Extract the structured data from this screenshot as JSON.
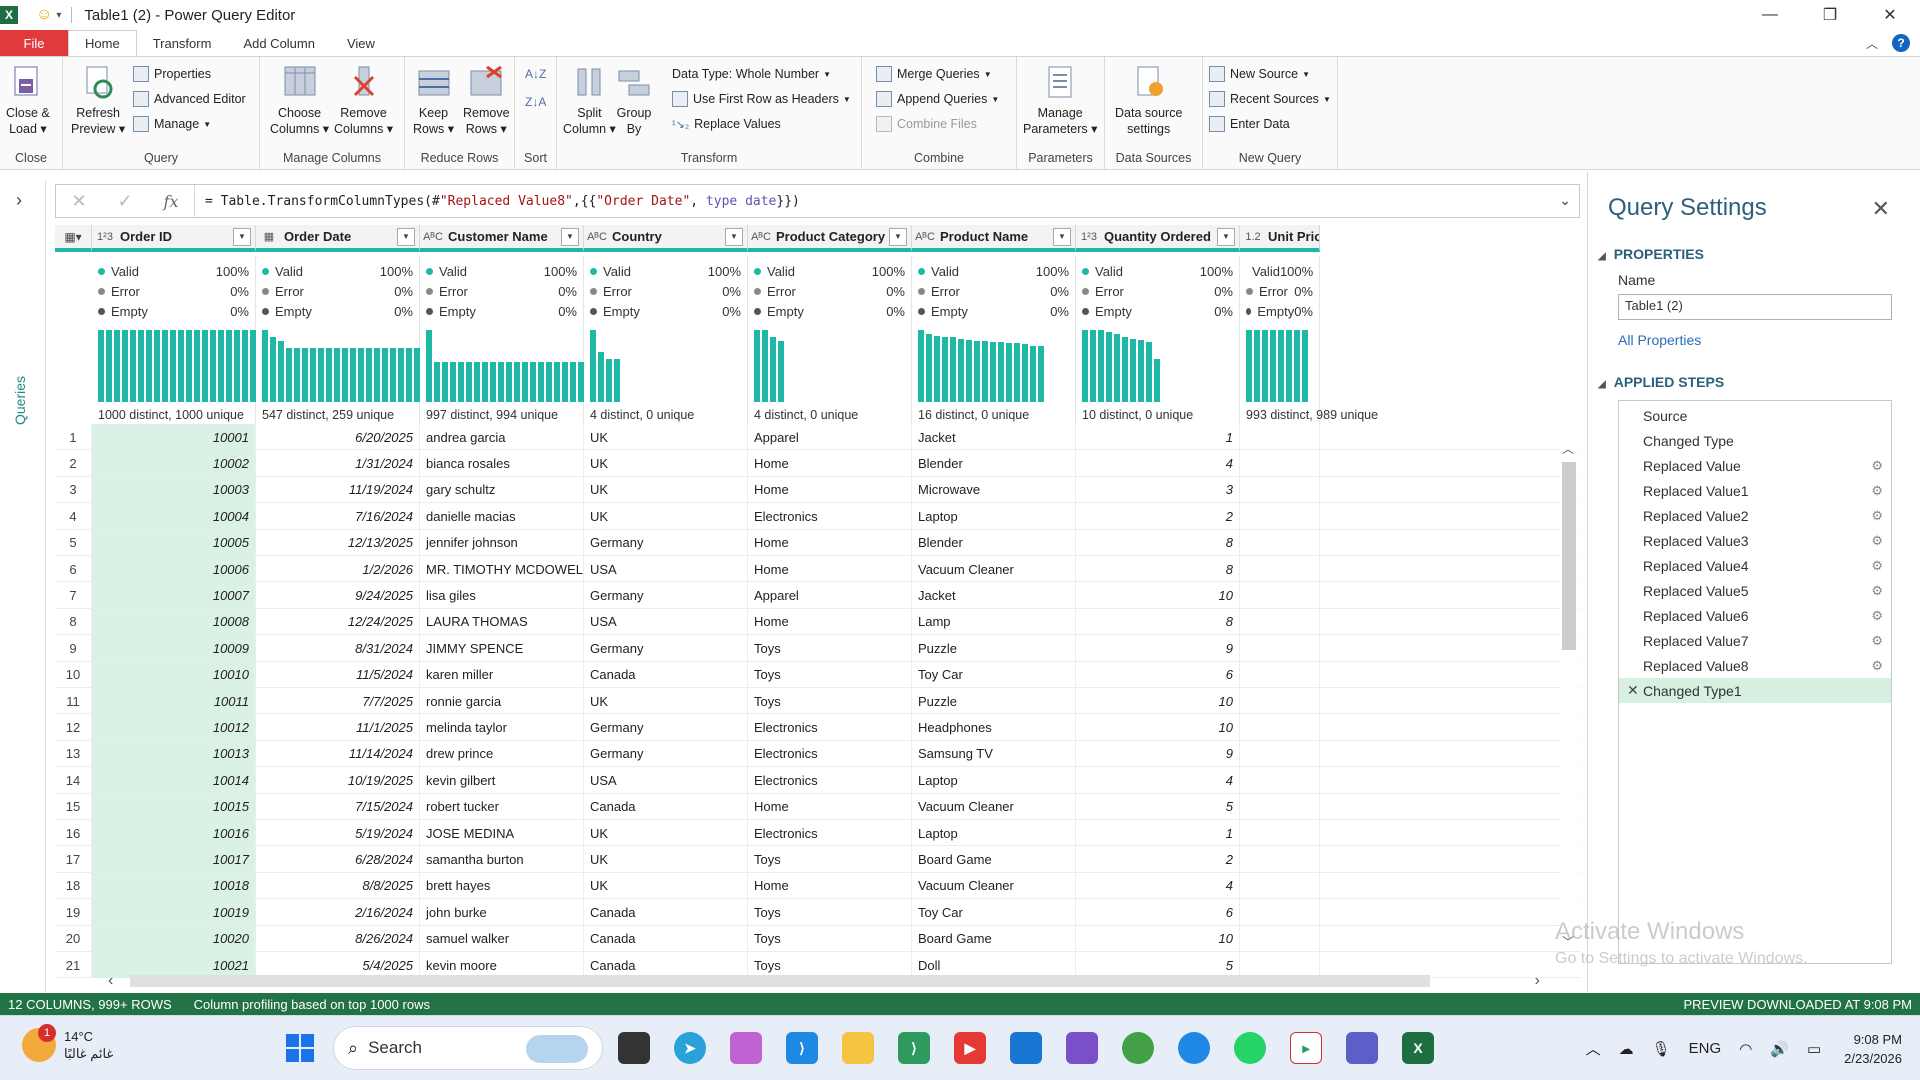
{
  "window": {
    "title": "Table1 (2) - Power Query Editor",
    "app_icon": "X",
    "controls": [
      "—",
      "❐",
      "✕"
    ]
  },
  "tabs": [
    {
      "label": "File"
    },
    {
      "label": "Home"
    },
    {
      "label": "Transform"
    },
    {
      "label": "Add Column"
    },
    {
      "label": "View"
    }
  ],
  "ribbon": {
    "close": {
      "btn": "Close &\nLoad ▾",
      "label": "Close"
    },
    "query": {
      "refresh": "Refresh\nPreview ▾",
      "properties": "Properties",
      "advanced": "Advanced Editor",
      "manage": "Manage",
      "label": "Query"
    },
    "manage_columns": {
      "choose": "Choose\nColumns ▾",
      "remove": "Remove\nColumns ▾",
      "label": "Manage Columns"
    },
    "reduce_rows": {
      "keep": "Keep\nRows ▾",
      "remove": "Remove\nRows ▾",
      "label": "Reduce Rows"
    },
    "sort": {
      "label": "Sort"
    },
    "transform": {
      "split": "Split\nColumn ▾",
      "group": "Group\nBy",
      "data_type": "Data Type: Whole Number",
      "first_row": "Use First Row as Headers",
      "replace": "Replace Values",
      "label": "Transform"
    },
    "combine": {
      "merge": "Merge Queries",
      "append": "Append Queries",
      "combine_files": "Combine Files",
      "label": "Combine"
    },
    "parameters": {
      "manage": "Manage\nParameters ▾",
      "label": "Parameters"
    },
    "data_sources": {
      "settings": "Data source\nsettings",
      "label": "Data Sources"
    },
    "new_query": {
      "new_source": "New Source",
      "recent": "Recent Sources",
      "enter": "Enter Data",
      "label": "New Query"
    }
  },
  "queries_pane": {
    "label": "Queries"
  },
  "formula": {
    "prefix": "= Table.TransformColumnTypes(#",
    "s1": "\"Replaced Value8\"",
    "mid1": ",{{",
    "s2": "\"Order Date\"",
    "mid2": ", ",
    "kw1": "type",
    "mid3": " ",
    "kw2": "date",
    "suffix": "}})"
  },
  "columns": [
    {
      "type": "1²3",
      "name": "Order ID",
      "valid": "100%",
      "error": "0%",
      "empty": "0%",
      "distinct": "1000 distinct, 1000 unique",
      "hist": [
        1,
        1,
        1,
        1,
        1,
        1,
        1,
        1,
        1,
        1,
        1,
        1,
        1,
        1,
        1,
        1,
        1,
        1,
        1,
        1
      ]
    },
    {
      "type": "▦",
      "name": "Order Date",
      "valid": "100%",
      "error": "0%",
      "empty": "0%",
      "distinct": "547 distinct, 259 unique",
      "hist": [
        1,
        0.9,
        0.85,
        0.75,
        0.75,
        0.75,
        0.75,
        0.75,
        0.75,
        0.75,
        0.75,
        0.75,
        0.75,
        0.75,
        0.75,
        0.75,
        0.75,
        0.75,
        0.75,
        0.75
      ]
    },
    {
      "type": "AᴮC",
      "name": "Customer Name",
      "valid": "100%",
      "error": "0%",
      "empty": "0%",
      "distinct": "997 distinct, 994 unique",
      "hist": [
        1,
        0.55,
        0.55,
        0.55,
        0.55,
        0.55,
        0.55,
        0.55,
        0.55,
        0.55,
        0.55,
        0.55,
        0.55,
        0.55,
        0.55,
        0.55,
        0.55,
        0.55,
        0.55,
        0.55
      ]
    },
    {
      "type": "AᴮC",
      "name": "Country",
      "valid": "100%",
      "error": "0%",
      "empty": "0%",
      "distinct": "4 distinct, 0 unique",
      "hist": [
        1,
        0.7,
        0.6,
        0.6
      ]
    },
    {
      "type": "AᴮC",
      "name": "Product Category",
      "valid": "100%",
      "error": "0%",
      "empty": "0%",
      "distinct": "4 distinct, 0 unique",
      "hist": [
        1,
        1,
        0.9,
        0.85
      ]
    },
    {
      "type": "AᴮC",
      "name": "Product Name",
      "valid": "100%",
      "error": "0%",
      "empty": "0%",
      "distinct": "16 distinct, 0 unique",
      "hist": [
        1,
        0.95,
        0.92,
        0.9,
        0.9,
        0.88,
        0.86,
        0.85,
        0.85,
        0.84,
        0.83,
        0.82,
        0.82,
        0.8,
        0.78,
        0.78
      ]
    },
    {
      "type": "1²3",
      "name": "Quantity Ordered",
      "valid": "100%",
      "error": "0%",
      "empty": "0%",
      "distinct": "10 distinct, 0 unique",
      "hist": [
        1,
        1,
        1,
        0.97,
        0.95,
        0.9,
        0.88,
        0.86,
        0.84,
        0.6
      ]
    },
    {
      "type": "1.2",
      "name": "Unit Price",
      "valid": "100%",
      "error": "0%",
      "empty": "0%",
      "distinct": "993 distinct, 989 unique",
      "hist": [
        1,
        1,
        1,
        1,
        1,
        1,
        1,
        1
      ]
    }
  ],
  "profile_labels": {
    "valid": "Valid",
    "error": "Error",
    "empty": "Empty"
  },
  "rows": [
    [
      "1",
      "10001",
      "6/20/2025",
      "andrea garcia",
      "UK",
      "Apparel",
      "Jacket",
      "1"
    ],
    [
      "2",
      "10002",
      "1/31/2024",
      "bianca rosales",
      "UK",
      "Home",
      "Blender",
      "4"
    ],
    [
      "3",
      "10003",
      "11/19/2024",
      "gary schultz",
      "UK",
      "Home",
      "Microwave",
      "3"
    ],
    [
      "4",
      "10004",
      "7/16/2024",
      "danielle macias",
      "UK",
      "Electronics",
      "Laptop",
      "2"
    ],
    [
      "5",
      "10005",
      "12/13/2025",
      "jennifer johnson",
      "Germany",
      "Home",
      "Blender",
      "8"
    ],
    [
      "6",
      "10006",
      "1/2/2026",
      "MR. TIMOTHY MCDOWELL",
      "USA",
      "Home",
      "Vacuum Cleaner",
      "8"
    ],
    [
      "7",
      "10007",
      "9/24/2025",
      "lisa giles",
      "Germany",
      "Apparel",
      "Jacket",
      "10"
    ],
    [
      "8",
      "10008",
      "12/24/2025",
      "LAURA THOMAS",
      "USA",
      "Home",
      "Lamp",
      "8"
    ],
    [
      "9",
      "10009",
      "8/31/2024",
      "JIMMY SPENCE",
      "Germany",
      "Toys",
      "Puzzle",
      "9"
    ],
    [
      "10",
      "10010",
      "11/5/2024",
      "karen miller",
      "Canada",
      "Toys",
      "Toy Car",
      "6"
    ],
    [
      "11",
      "10011",
      "7/7/2025",
      "ronnie garcia",
      "UK",
      "Toys",
      "Puzzle",
      "10"
    ],
    [
      "12",
      "10012",
      "11/1/2025",
      "melinda taylor",
      "Germany",
      "Electronics",
      "Headphones",
      "10"
    ],
    [
      "13",
      "10013",
      "11/14/2024",
      "drew prince",
      "Germany",
      "Electronics",
      "Samsung TV",
      "9"
    ],
    [
      "14",
      "10014",
      "10/19/2025",
      "kevin gilbert",
      "USA",
      "Electronics",
      "Laptop",
      "4"
    ],
    [
      "15",
      "10015",
      "7/15/2024",
      "robert tucker",
      "Canada",
      "Home",
      "Vacuum Cleaner",
      "5"
    ],
    [
      "16",
      "10016",
      "5/19/2024",
      "JOSE MEDINA",
      "UK",
      "Electronics",
      "Laptop",
      "1"
    ],
    [
      "17",
      "10017",
      "6/28/2024",
      "samantha burton",
      "UK",
      "Toys",
      "Board Game",
      "2"
    ],
    [
      "18",
      "10018",
      "8/8/2025",
      "brett hayes",
      "UK",
      "Home",
      "Vacuum Cleaner",
      "4"
    ],
    [
      "19",
      "10019",
      "2/16/2024",
      "john burke",
      "Canada",
      "Toys",
      "Toy Car",
      "6"
    ],
    [
      "20",
      "10020",
      "8/26/2024",
      "samuel walker",
      "Canada",
      "Toys",
      "Board Game",
      "10"
    ],
    [
      "21",
      "10021",
      "5/4/2025",
      "kevin moore",
      "Canada",
      "Toys",
      "Doll",
      "5"
    ]
  ],
  "query_settings": {
    "title": "Query Settings",
    "properties": "PROPERTIES",
    "name_label": "Name",
    "name_value": "Table1 (2)",
    "all_properties": "All Properties",
    "applied_steps": "APPLIED STEPS",
    "steps": [
      {
        "label": "Source",
        "gear": false
      },
      {
        "label": "Changed Type",
        "gear": false
      },
      {
        "label": "Replaced Value",
        "gear": true
      },
      {
        "label": "Replaced Value1",
        "gear": true
      },
      {
        "label": "Replaced Value2",
        "gear": true
      },
      {
        "label": "Replaced Value3",
        "gear": true
      },
      {
        "label": "Replaced Value4",
        "gear": true
      },
      {
        "label": "Replaced Value5",
        "gear": true
      },
      {
        "label": "Replaced Value6",
        "gear": true
      },
      {
        "label": "Replaced Value7",
        "gear": true
      },
      {
        "label": "Replaced Value8",
        "gear": true
      },
      {
        "label": "Changed Type1",
        "gear": false,
        "active": true
      }
    ]
  },
  "watermark": {
    "line1": "Activate Windows",
    "line2": "Go to Settings to activate Windows."
  },
  "status": {
    "left": "12 COLUMNS, 999+ ROWS",
    "middle": "Column profiling based on top 1000 rows",
    "right": "PREVIEW DOWNLOADED AT 9:08 PM"
  },
  "taskbar": {
    "weather_temp": "14°C",
    "weather_desc": "غائم غالبًا",
    "weather_badge": "1",
    "search": "Search",
    "lang": "ENG",
    "time": "9:08 PM",
    "date": "2/23/2026"
  },
  "colors": {
    "accent": "#1fb8a6",
    "excel_green": "#217346",
    "file_red": "#e03a3a"
  }
}
